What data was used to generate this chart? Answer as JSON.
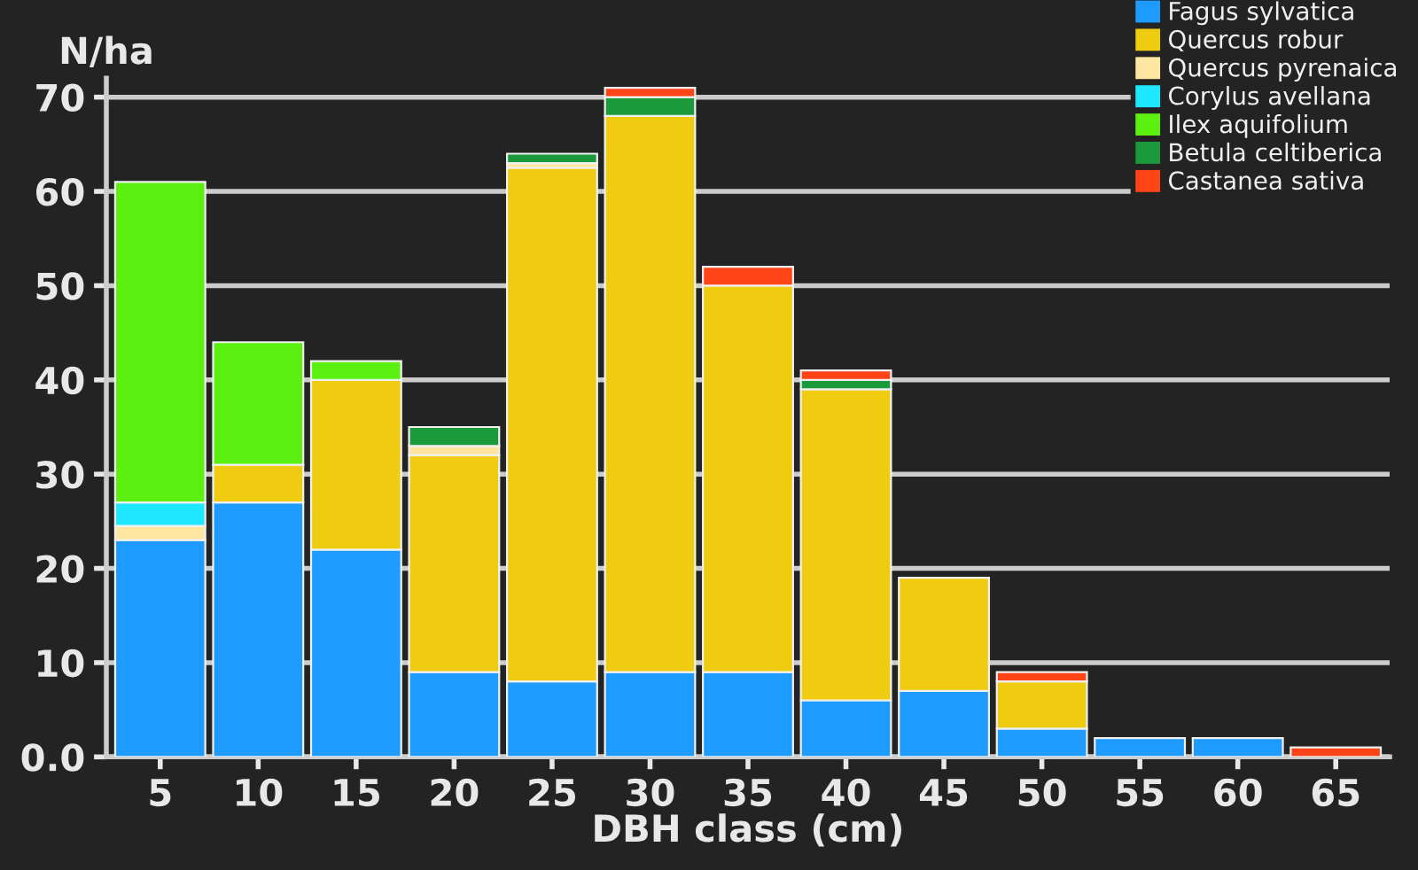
{
  "chart_data": {
    "type": "bar",
    "stacked": true,
    "ylabel": "N/ha",
    "xlabel": "DBH class (cm)",
    "categories": [
      "5",
      "10",
      "15",
      "20",
      "25",
      "30",
      "35",
      "40",
      "45",
      "50",
      "55",
      "60",
      "65"
    ],
    "ylim": [
      0,
      72
    ],
    "yticks": [
      {
        "value": 0,
        "label": "0.0"
      },
      10,
      20,
      30,
      40,
      50,
      60,
      70
    ],
    "grid": "y",
    "legend": "top right",
    "series": [
      {
        "name": "Fagus sylvatica",
        "color": "#1e9bff",
        "values": [
          23,
          27,
          22,
          9,
          8,
          9,
          9,
          6,
          7,
          3,
          2,
          2,
          0
        ]
      },
      {
        "name": "Quercus robur",
        "color": "#f0cc10",
        "values": [
          0,
          4,
          18,
          23,
          54.5,
          59,
          41,
          33,
          12,
          5,
          0,
          0,
          0
        ]
      },
      {
        "name": "Quercus pyrenaica",
        "color": "#ffe6a0",
        "values": [
          1.5,
          0,
          0,
          1,
          0.5,
          0,
          0,
          0,
          0,
          0,
          0,
          0,
          0
        ]
      },
      {
        "name": "Corylus avellana",
        "color": "#1ee8ff",
        "values": [
          2.5,
          0,
          0,
          0,
          0,
          0,
          0,
          0,
          0,
          0,
          0,
          0,
          0
        ]
      },
      {
        "name": "Ilex aquifolium",
        "color": "#5cf010",
        "values": [
          34,
          13,
          2,
          0,
          0,
          0,
          0,
          0,
          0,
          0,
          0,
          0,
          0
        ]
      },
      {
        "name": "Betula celtiberica",
        "color": "#1a9a3a",
        "values": [
          0,
          0,
          0,
          2,
          1,
          2,
          0,
          1,
          0,
          0,
          0,
          0,
          0
        ]
      },
      {
        "name": "Castanea sativa",
        "color": "#ff4418",
        "values": [
          0,
          0,
          0,
          0,
          0,
          1,
          2,
          1,
          0,
          1,
          0,
          0,
          1
        ]
      }
    ]
  }
}
